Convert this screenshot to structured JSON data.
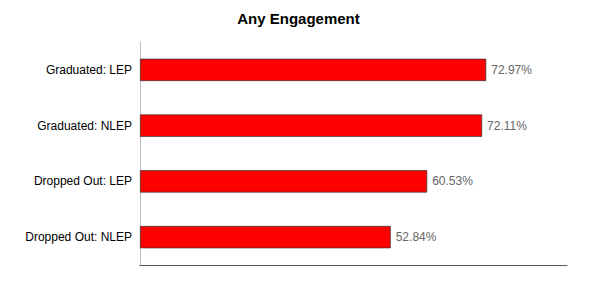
{
  "chart_data": {
    "type": "bar",
    "orientation": "horizontal",
    "title": "Any Engagement",
    "categories": [
      "Graduated: LEP",
      "Graduated: NLEP",
      "Dropped Out: LEP",
      "Dropped Out: NLEP"
    ],
    "values": [
      72.97,
      72.11,
      60.53,
      52.84
    ],
    "value_labels": [
      "72.97%",
      "72.11%",
      "60.53%",
      "52.84%"
    ],
    "data_labels": true,
    "color": "#FF0000",
    "xlim": [
      0,
      90
    ],
    "tick_labels": "y",
    "grid": false
  }
}
